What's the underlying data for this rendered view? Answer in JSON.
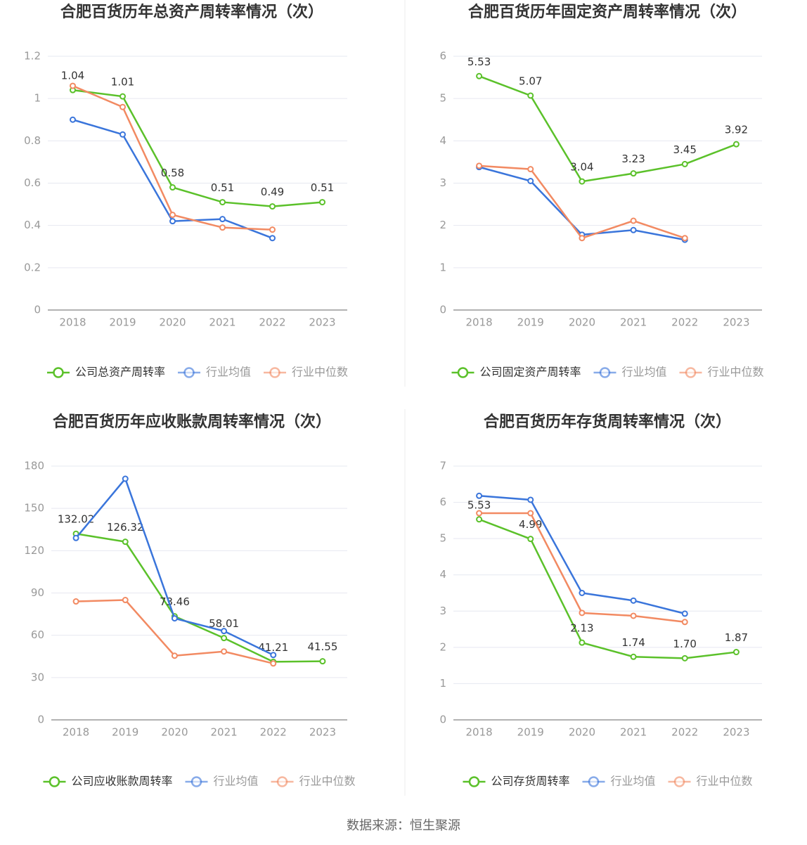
{
  "chart_data": [
    {
      "type": "line",
      "title": "合肥百货历年总资产周转率情况（次）",
      "categories": [
        "2018",
        "2019",
        "2020",
        "2021",
        "2022",
        "2023"
      ],
      "series": [
        {
          "name": "公司总资产周转率",
          "color": "#5bc12a",
          "values": [
            1.04,
            1.01,
            0.58,
            0.51,
            0.49,
            0.51
          ]
        },
        {
          "name": "行业均值",
          "color": "#3a75db",
          "values": [
            0.9,
            0.83,
            0.42,
            0.43,
            0.34,
            null
          ]
        },
        {
          "name": "行业中位数",
          "color": "#f28a62",
          "values": [
            1.06,
            0.96,
            0.45,
            0.39,
            0.38,
            null
          ]
        }
      ],
      "ylim": [
        0,
        1.2
      ],
      "yticks": [
        0,
        0.2,
        0.4,
        0.6,
        0.8,
        1,
        1.2
      ],
      "grid": true,
      "legend": "bottom"
    },
    {
      "type": "line",
      "title": "合肥百货历年固定资产周转率情况（次）",
      "categories": [
        "2018",
        "2019",
        "2020",
        "2021",
        "2022",
        "2023"
      ],
      "series": [
        {
          "name": "公司固定资产周转率",
          "color": "#5bc12a",
          "values": [
            5.53,
            5.07,
            3.04,
            3.23,
            3.45,
            3.92
          ]
        },
        {
          "name": "行业均值",
          "color": "#3a75db",
          "values": [
            3.38,
            3.05,
            1.78,
            1.89,
            1.66,
            null
          ]
        },
        {
          "name": "行业中位数",
          "color": "#f28a62",
          "values": [
            3.41,
            3.33,
            1.7,
            2.11,
            1.7,
            null
          ]
        }
      ],
      "ylim": [
        0,
        6
      ],
      "yticks": [
        0,
        1,
        2,
        3,
        4,
        5,
        6
      ],
      "grid": true,
      "legend": "bottom"
    },
    {
      "type": "line",
      "title": "合肥百货历年应收账款周转率情况（次）",
      "categories": [
        "2018",
        "2019",
        "2020",
        "2021",
        "2022",
        "2023"
      ],
      "series": [
        {
          "name": "公司应收账款周转率",
          "color": "#5bc12a",
          "values": [
            132.02,
            126.32,
            73.46,
            58.01,
            41.21,
            41.55
          ]
        },
        {
          "name": "行业均值",
          "color": "#3a75db",
          "values": [
            129,
            171,
            72,
            63,
            46,
            null
          ]
        },
        {
          "name": "行业中位数",
          "color": "#f28a62",
          "values": [
            84,
            85,
            45.5,
            48.5,
            40,
            null
          ]
        }
      ],
      "ylim": [
        0,
        180
      ],
      "yticks": [
        0,
        30,
        60,
        90,
        120,
        150,
        180
      ],
      "grid": true,
      "legend": "bottom"
    },
    {
      "type": "line",
      "title": "合肥百货历年存货周转率情况（次）",
      "categories": [
        "2018",
        "2019",
        "2020",
        "2021",
        "2022",
        "2023"
      ],
      "series": [
        {
          "name": "公司存货周转率",
          "color": "#5bc12a",
          "values": [
            5.53,
            4.99,
            2.13,
            1.74,
            1.7,
            1.87
          ],
          "value_labels": [
            "5.53",
            "4.99",
            "2.13",
            "1.74",
            "1.70",
            "1.87"
          ]
        },
        {
          "name": "行业均值",
          "color": "#3a75db",
          "values": [
            6.18,
            6.07,
            3.5,
            3.29,
            2.93,
            null
          ]
        },
        {
          "name": "行业中位数",
          "color": "#f28a62",
          "values": [
            5.7,
            5.7,
            2.95,
            2.87,
            2.7,
            null
          ]
        }
      ],
      "ylim": [
        0,
        7
      ],
      "yticks": [
        0,
        1,
        2,
        3,
        4,
        5,
        6,
        7
      ],
      "grid": true,
      "legend": "bottom"
    }
  ],
  "source": "数据来源：恒生聚源"
}
